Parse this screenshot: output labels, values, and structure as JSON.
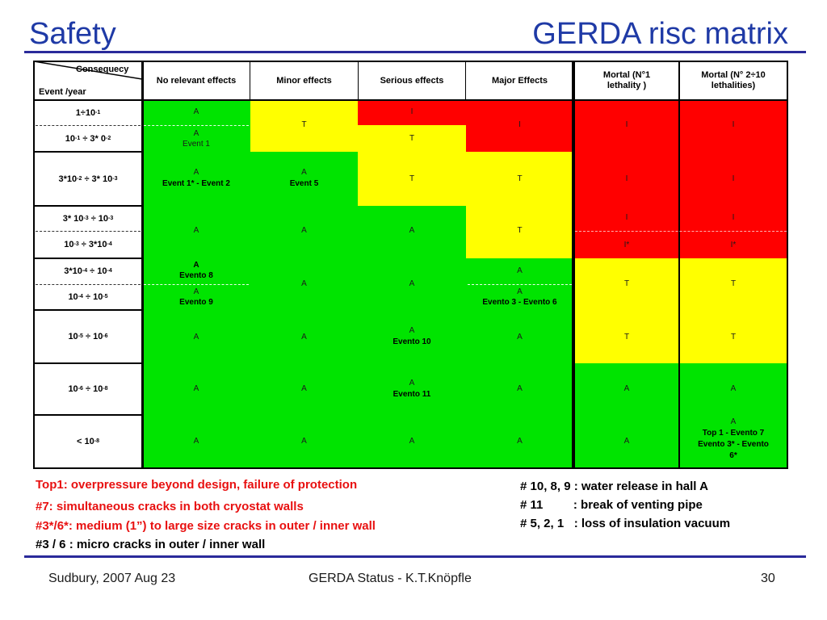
{
  "title_left": "Safety",
  "title_right": "GERDA risc matrix",
  "matrix": {
    "corner_top": "Consequecy",
    "corner_bottom": "Event /year",
    "columns": [
      "No relevant effects",
      "Minor effects",
      "Serious effects",
      "Major Effects",
      "Mortal (N°1 lethality )",
      "Mortal (N° 2÷10 lethalities)"
    ],
    "rows": [
      {
        "base": "1÷10",
        "exp": "-1",
        "tail": "",
        "texp": ""
      },
      {
        "base": "10",
        "exp": "-1",
        "tail": "÷ 3* 0",
        "texp": "-2"
      },
      {
        "base": "3*10",
        "exp": "-2",
        "tail": "÷ 3* 10",
        "texp": "-3"
      },
      {
        "base": "3* 10",
        "exp": "-3",
        "tail": "÷ 10",
        "texp": "-3"
      },
      {
        "base": "10",
        "exp": "-3",
        "tail": "÷ 3*10",
        "texp": "-4"
      },
      {
        "base": "3*10",
        "exp": "-4",
        "tail": "÷ 10",
        "texp": "-4"
      },
      {
        "base": "10",
        "exp": "-4",
        "tail": "÷ 10",
        "texp": "-5"
      },
      {
        "base": "10",
        "exp": "-5",
        "tail": "÷ 10",
        "texp": "-6"
      },
      {
        "base": "10",
        "exp": "-6",
        "tail": "÷ 10",
        "texp": "-8"
      },
      {
        "base": "< 10",
        "exp": "-8",
        "tail": "",
        "texp": ""
      }
    ],
    "cell_text": {
      "c1r1": "A",
      "c1r2a": "A",
      "c1r2b": "Event 1",
      "c2r12": "T",
      "c3r1": "I",
      "c3r2": "T",
      "c4r12": "I",
      "c5r12": "I",
      "c6r12": "I",
      "c1r3a": "A",
      "c1r3b": "Event 1* -  Event 2",
      "c2r3a": "A",
      "c2r3b": "Event 5",
      "c3r3": "T",
      "c4r3": "T",
      "c5r3": "I",
      "c6r3": "I",
      "c1r45": "A",
      "c2r45": "A",
      "c3r45": "A",
      "c4r45": "T",
      "c5r4": "I",
      "c5r5": "I*",
      "c6r4": "I",
      "c6r5": "I*",
      "c1r6a": "A",
      "c1r6b": "Evento 8",
      "c1r7a": "A",
      "c1r7b": "Evento 9",
      "c2r67": "A",
      "c3r67": "A",
      "c4r6": "A",
      "c4r7a": "A",
      "c4r7b": "Evento 3 -  Evento 6",
      "c5r67": "T",
      "c6r67": "T",
      "c1r8": "A",
      "c2r8": "A",
      "c3r8a": "A",
      "c3r8b": "Evento 10",
      "c4r8": "A",
      "c5r8": "T",
      "c6r8": "T",
      "c1r9": "A",
      "c2r9": "A",
      "c3r9a": "A",
      "c3r9b": "Evento 11",
      "c4r9": "A",
      "c5r9": "A",
      "c6r9": "A",
      "c1r10": "A",
      "c2r10": "A",
      "c3r10": "A",
      "c4r10": "A",
      "c5r10": "A",
      "c6r10a": "A",
      "c6r10b": "Top 1 -  Evento 7",
      "c6r10c": "Evento 3* - Evento",
      "c6r10d": "6*"
    }
  },
  "notes_left": [
    "Top1: overpressure beyond design, failure of protection",
    "#7: simultaneous cracks in both cryostat walls",
    "#3*/6*: medium (1”) to large size cracks in outer / inner wall",
    "#3 / 6 : micro cracks in outer / inner wall"
  ],
  "notes_right": [
    "# 10, 8, 9 : water release in hall A",
    "# 11         : break of venting pipe",
    "# 5, 2, 1   : loss of insulation vacuum"
  ],
  "footer": {
    "left": "Sudbury, 2007 Aug 23",
    "center": "GERDA  Status - K.T.Knöpfle",
    "right": "30"
  },
  "colors": {
    "green": "#00e400",
    "yellow": "#ffff00",
    "red": "#ff0000",
    "title": "#1f3aa6"
  }
}
